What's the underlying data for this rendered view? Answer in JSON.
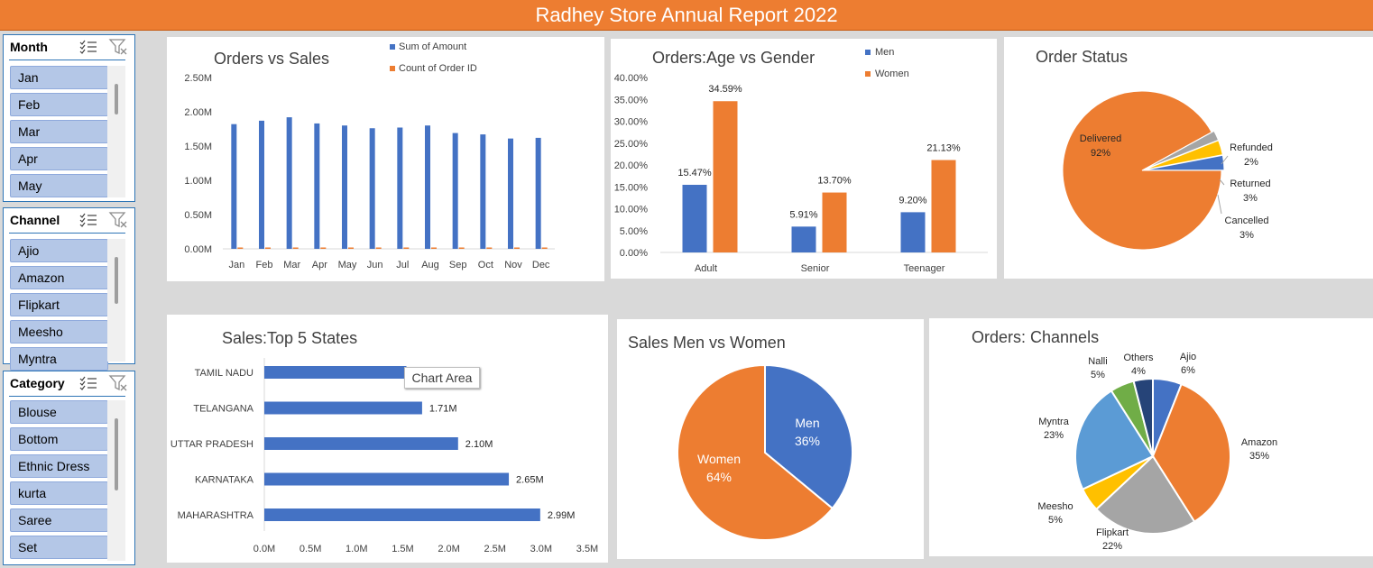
{
  "page_title": "Radhey Store Annual Report 2022",
  "colors": {
    "blue": "#4472c4",
    "orange": "#ed7d31",
    "gray": "#a5a5a5",
    "yellow": "#ffc000",
    "lightblue": "#5b9bd5",
    "green": "#70ad47",
    "navy": "#264478"
  },
  "slicers": [
    {
      "title": "Month",
      "items": [
        "Jan",
        "Feb",
        "Mar",
        "Apr",
        "May"
      ]
    },
    {
      "title": "Channel",
      "items": [
        "Ajio",
        "Amazon",
        "Flipkart",
        "Meesho",
        "Myntra"
      ]
    },
    {
      "title": "Category",
      "items": [
        "Blouse",
        "Bottom",
        "Ethnic Dress",
        "kurta",
        "Saree",
        "Set"
      ]
    }
  ],
  "slicer_icons": [
    "multi-select-icon",
    "clear-filter-icon"
  ],
  "tooltip": "Chart Area",
  "chart_data": [
    {
      "type": "bar",
      "title": "Orders vs Sales",
      "categories": [
        "Jan",
        "Feb",
        "Mar",
        "Apr",
        "May",
        "Jun",
        "Jul",
        "Aug",
        "Sep",
        "Oct",
        "Nov",
        "Dec"
      ],
      "series": [
        {
          "name": "Sum of Amount",
          "values": [
            1.82,
            1.87,
            1.92,
            1.83,
            1.8,
            1.76,
            1.77,
            1.8,
            1.69,
            1.67,
            1.61,
            1.62
          ]
        },
        {
          "name": "Count of Order ID",
          "values": [
            0.003,
            0.003,
            0.003,
            0.003,
            0.003,
            0.003,
            0.003,
            0.003,
            0.003,
            0.003,
            0.003,
            0.003
          ]
        }
      ],
      "y_ticks": [
        "0.00M",
        "0.50M",
        "1.00M",
        "1.50M",
        "2.00M",
        "2.50M"
      ],
      "ylim": [
        0,
        2.5
      ],
      "legend": "top"
    },
    {
      "type": "bar",
      "title": "Orders:Age vs Gender",
      "categories": [
        "Adult",
        "Senior",
        "Teenager"
      ],
      "series": [
        {
          "name": "Men",
          "values": [
            15.47,
            5.91,
            9.2
          ],
          "labels": [
            "15.47%",
            "5.91%",
            "9.20%"
          ]
        },
        {
          "name": "Women",
          "values": [
            34.59,
            13.7,
            21.13
          ],
          "labels": [
            "34.59%",
            "13.70%",
            "21.13%"
          ]
        }
      ],
      "y_ticks": [
        "0.00%",
        "5.00%",
        "10.00%",
        "15.00%",
        "20.00%",
        "25.00%",
        "30.00%",
        "35.00%",
        "40.00%"
      ],
      "ylim": [
        0,
        40
      ],
      "legend": "top-right"
    },
    {
      "type": "pie",
      "title": "Order Status",
      "slices": [
        {
          "label": "Delivered",
          "value": 92,
          "pct": "92%"
        },
        {
          "label": "Refunded",
          "value": 2,
          "pct": "2%"
        },
        {
          "label": "Returned",
          "value": 3,
          "pct": "3%"
        },
        {
          "label": "Cancelled",
          "value": 3,
          "pct": "3%"
        }
      ]
    },
    {
      "type": "bar",
      "title": "Sales:Top 5 States",
      "orientation": "horizontal",
      "categories": [
        "TAMIL NADU",
        "TELANGANA",
        "UTTAR PRADESH",
        "KARNATAKA",
        "MAHARASHTRA"
      ],
      "values": [
        1.54,
        1.71,
        2.1,
        2.65,
        2.99
      ],
      "labels": [
        "",
        "1.71M",
        "2.10M",
        "2.65M",
        "2.99M"
      ],
      "x_ticks": [
        "0.0M",
        "0.5M",
        "1.0M",
        "1.5M",
        "2.0M",
        "2.5M",
        "3.0M",
        "3.5M"
      ],
      "xlim": [
        0,
        3.5
      ]
    },
    {
      "type": "pie",
      "title": "Sales Men vs Women",
      "slices": [
        {
          "label": "Men",
          "value": 36,
          "pct": "36%"
        },
        {
          "label": "Women",
          "value": 64,
          "pct": "64%"
        }
      ]
    },
    {
      "type": "pie",
      "title": "Orders: Channels",
      "slices": [
        {
          "label": "Ajio",
          "value": 6,
          "pct": "6%"
        },
        {
          "label": "Amazon",
          "value": 35,
          "pct": "35%"
        },
        {
          "label": "Flipkart",
          "value": 22,
          "pct": "22%"
        },
        {
          "label": "Meesho",
          "value": 5,
          "pct": "5%"
        },
        {
          "label": "Myntra",
          "value": 23,
          "pct": "23%"
        },
        {
          "label": "Nalli",
          "value": 5,
          "pct": "5%"
        },
        {
          "label": "Others",
          "value": 4,
          "pct": "4%"
        }
      ]
    }
  ]
}
